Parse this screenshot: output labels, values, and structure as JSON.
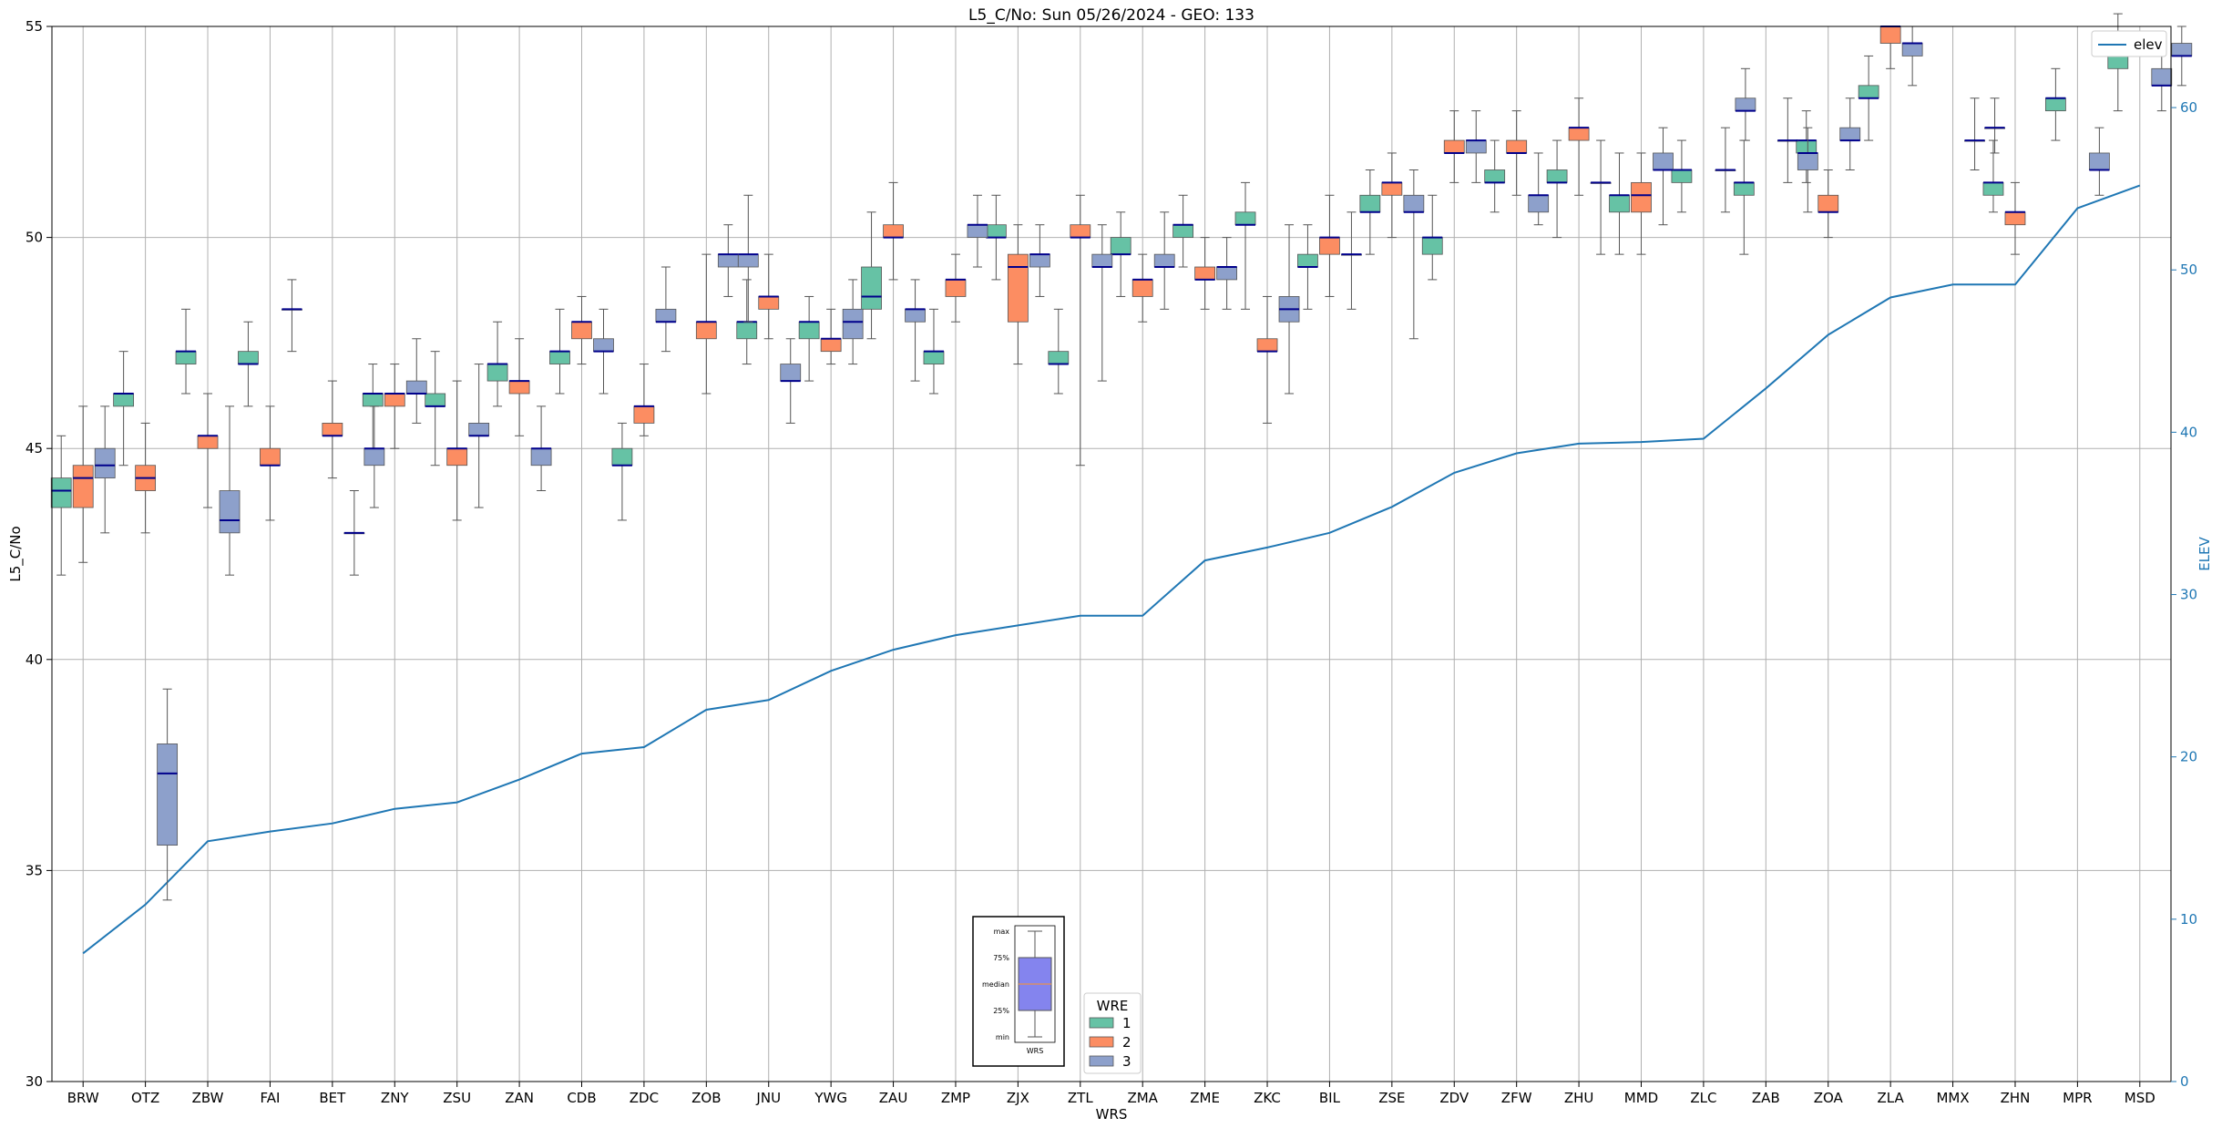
{
  "chart_data": {
    "type": "box",
    "title": "L5_C/No: Sun 05/26/2024 - GEO: 133",
    "xlabel": "WRS",
    "ylabel": "L5_C/No",
    "y2label": "ELEV",
    "ylim": [
      30,
      55
    ],
    "y2lim": [
      0,
      65
    ],
    "yticks": [
      30,
      35,
      40,
      45,
      50,
      55
    ],
    "y2ticks": [
      0,
      10,
      20,
      30,
      40,
      50,
      60
    ],
    "grid": true,
    "categories": [
      "BRW",
      "OTZ",
      "ZBW",
      "FAI",
      "BET",
      "ZNY",
      "ZSU",
      "ZAN",
      "CDB",
      "ZDC",
      "ZOB",
      "JNU",
      "YWG",
      "ZAU",
      "ZMP",
      "ZJX",
      "ZTL",
      "ZMA",
      "ZME",
      "ZKC",
      "BIL",
      "ZSE",
      "ZDV",
      "ZFW",
      "ZHU",
      "MMD",
      "ZLC",
      "ZAB",
      "ZOA",
      "ZLA",
      "MMX",
      "ZHN",
      "MPR",
      "MSD"
    ],
    "wre_colors": {
      "1": "#66c2a5",
      "2": "#fc8d62",
      "3": "#8da0cb"
    },
    "median_color": "#00008b",
    "elev": {
      "name": "elev",
      "color": "#1f77b4",
      "values": [
        7.9,
        10.9,
        14.8,
        15.4,
        15.9,
        16.8,
        17.2,
        18.6,
        20.2,
        20.6,
        22.9,
        23.5,
        25.3,
        26.6,
        27.5,
        28.1,
        28.7,
        28.7,
        32.1,
        32.9,
        33.8,
        35.4,
        37.5,
        38.7,
        39.3,
        39.4,
        39.6,
        42.7,
        46.0,
        48.3,
        49.1,
        49.1,
        53.8,
        55.2
      ]
    },
    "series": [
      {
        "name": "1",
        "boxes": [
          {
            "cat": "BRW",
            "min": 42,
            "q1": 43.6,
            "med": 44,
            "q3": 44.3,
            "max": 45.3
          },
          {
            "cat": "OTZ",
            "min": 44.6,
            "q1": 46,
            "med": 46.3,
            "q3": 46.3,
            "max": 47.3
          },
          {
            "cat": "ZBW",
            "min": 46.3,
            "q1": 47,
            "med": 47.3,
            "q3": 47.3,
            "max": 48.3
          },
          {
            "cat": "FAI",
            "min": 46,
            "q1": 47,
            "med": 47,
            "q3": 47.3,
            "max": 48
          },
          {
            "cat": "ZNY",
            "min": 45,
            "q1": 46,
            "med": 46.3,
            "q3": 46.3,
            "max": 47
          },
          {
            "cat": "ZSU",
            "min": 44.6,
            "q1": 46,
            "med": 46,
            "q3": 46.3,
            "max": 47.3
          },
          {
            "cat": "ZAN",
            "min": 46,
            "q1": 46.6,
            "med": 47,
            "q3": 47,
            "max": 48
          },
          {
            "cat": "CDB",
            "min": 46.3,
            "q1": 47,
            "med": 47.3,
            "q3": 47.3,
            "max": 48.3
          },
          {
            "cat": "ZDC",
            "min": 43.3,
            "q1": 44.6,
            "med": 44.6,
            "q3": 45,
            "max": 45.6
          },
          {
            "cat": "JNU",
            "min": 47,
            "q1": 47.6,
            "med": 48,
            "q3": 48,
            "max": 49
          },
          {
            "cat": "YWG",
            "min": 46.6,
            "q1": 47.6,
            "med": 48,
            "q3": 48,
            "max": 48.6
          },
          {
            "cat": "ZAU",
            "min": 47.6,
            "q1": 48.3,
            "med": 48.6,
            "q3": 49.3,
            "max": 50.6
          },
          {
            "cat": "ZMP",
            "min": 46.3,
            "q1": 47,
            "med": 47.3,
            "q3": 47.3,
            "max": 48.3
          },
          {
            "cat": "ZJX",
            "min": 49,
            "q1": 50,
            "med": 50,
            "q3": 50.3,
            "max": 51
          },
          {
            "cat": "ZTL",
            "min": 46.3,
            "q1": 47,
            "med": 47,
            "q3": 47.3,
            "max": 48.3
          },
          {
            "cat": "ZMA",
            "min": 48.6,
            "q1": 49.6,
            "med": 49.6,
            "q3": 50,
            "max": 50.6
          },
          {
            "cat": "ZME",
            "min": 49.3,
            "q1": 50,
            "med": 50.3,
            "q3": 50.3,
            "max": 51
          },
          {
            "cat": "ZKC",
            "min": 48.3,
            "q1": 50.3,
            "med": 50.3,
            "q3": 50.6,
            "max": 51.3
          },
          {
            "cat": "BIL",
            "min": 48.3,
            "q1": 49.3,
            "med": 49.3,
            "q3": 49.6,
            "max": 50.3
          },
          {
            "cat": "ZSE",
            "min": 49.6,
            "q1": 50.6,
            "med": 50.6,
            "q3": 51,
            "max": 51.6
          },
          {
            "cat": "ZDV",
            "min": 49,
            "q1": 49.6,
            "med": 50,
            "q3": 50,
            "max": 51
          },
          {
            "cat": "ZFW",
            "min": 50.6,
            "q1": 51.3,
            "med": 51.3,
            "q3": 51.6,
            "max": 52.3
          },
          {
            "cat": "ZHU",
            "min": 50,
            "q1": 51.3,
            "med": 51.3,
            "q3": 51.6,
            "max": 52.3
          },
          {
            "cat": "MMD",
            "min": 49.6,
            "q1": 50.6,
            "med": 51,
            "q3": 51,
            "max": 52
          },
          {
            "cat": "ZLC",
            "min": 50.6,
            "q1": 51.3,
            "med": 51.6,
            "q3": 51.6,
            "max": 52.3
          },
          {
            "cat": "ZAB",
            "min": 49.6,
            "q1": 51,
            "med": 51.3,
            "q3": 51.3,
            "max": 52.3
          },
          {
            "cat": "ZOA",
            "min": 51.3,
            "q1": 52,
            "med": 52.3,
            "q3": 52.3,
            "max": 53
          },
          {
            "cat": "ZLA",
            "min": 52.3,
            "q1": 53.3,
            "med": 53.3,
            "q3": 53.6,
            "max": 54.3
          },
          {
            "cat": "ZHN",
            "min": 50.6,
            "q1": 51,
            "med": 51.3,
            "q3": 51.3,
            "max": 52.3
          },
          {
            "cat": "MPR",
            "min": 52.3,
            "q1": 53,
            "med": 53.3,
            "q3": 53.3,
            "max": 54
          },
          {
            "cat": "MSD",
            "min": 53,
            "q1": 54,
            "med": 54.3,
            "q3": 54.3,
            "max": 55.3
          }
        ]
      },
      {
        "name": "2",
        "boxes": [
          {
            "cat": "BRW",
            "min": 42.3,
            "q1": 43.6,
            "med": 44.3,
            "q3": 44.6,
            "max": 46
          },
          {
            "cat": "OTZ",
            "min": 43,
            "q1": 44,
            "med": 44.3,
            "q3": 44.6,
            "max": 45.6
          },
          {
            "cat": "ZBW",
            "min": 43.6,
            "q1": 45,
            "med": 45.3,
            "q3": 45.3,
            "max": 46.3
          },
          {
            "cat": "FAI",
            "min": 43.3,
            "q1": 44.6,
            "med": 44.6,
            "q3": 45,
            "max": 46
          },
          {
            "cat": "BET",
            "min": 44.3,
            "q1": 45.3,
            "med": 45.3,
            "q3": 45.6,
            "max": 46.6
          },
          {
            "cat": "ZNY",
            "min": 45,
            "q1": 46,
            "med": 46.3,
            "q3": 46.3,
            "max": 47
          },
          {
            "cat": "ZSU",
            "min": 43.3,
            "q1": 44.6,
            "med": 45,
            "q3": 45,
            "max": 46.6
          },
          {
            "cat": "ZAN",
            "min": 45.3,
            "q1": 46.3,
            "med": 46.6,
            "q3": 46.6,
            "max": 47.6
          },
          {
            "cat": "CDB",
            "min": 47,
            "q1": 47.6,
            "med": 48,
            "q3": 48,
            "max": 48.6
          },
          {
            "cat": "ZDC",
            "min": 45.3,
            "q1": 45.6,
            "med": 46,
            "q3": 46,
            "max": 47
          },
          {
            "cat": "ZOB",
            "min": 46.3,
            "q1": 47.6,
            "med": 48,
            "q3": 48,
            "max": 49.6
          },
          {
            "cat": "JNU",
            "min": 47.6,
            "q1": 48.3,
            "med": 48.6,
            "q3": 48.6,
            "max": 49.6
          },
          {
            "cat": "YWG",
            "min": 47,
            "q1": 47.3,
            "med": 47.6,
            "q3": 47.6,
            "max": 48.3
          },
          {
            "cat": "ZAU",
            "min": 49,
            "q1": 50,
            "med": 50,
            "q3": 50.3,
            "max": 51.3
          },
          {
            "cat": "ZMP",
            "min": 48,
            "q1": 48.6,
            "med": 49,
            "q3": 49,
            "max": 49.6
          },
          {
            "cat": "ZJX",
            "min": 47,
            "q1": 48,
            "med": 49.3,
            "q3": 49.6,
            "max": 50.3
          },
          {
            "cat": "ZTL",
            "min": 44.6,
            "q1": 50,
            "med": 50,
            "q3": 50.3,
            "max": 51
          },
          {
            "cat": "ZMA",
            "min": 48,
            "q1": 48.6,
            "med": 49,
            "q3": 49,
            "max": 49.6
          },
          {
            "cat": "ZME",
            "min": 48.3,
            "q1": 49,
            "med": 49,
            "q3": 49.3,
            "max": 50
          },
          {
            "cat": "ZKC",
            "min": 45.6,
            "q1": 47.3,
            "med": 47.3,
            "q3": 47.6,
            "max": 48.6
          },
          {
            "cat": "BIL",
            "min": 48.6,
            "q1": 49.6,
            "med": 50,
            "q3": 50,
            "max": 51
          },
          {
            "cat": "ZSE",
            "min": 50,
            "q1": 51,
            "med": 51.3,
            "q3": 51.3,
            "max": 52
          },
          {
            "cat": "ZDV",
            "min": 51.3,
            "q1": 52,
            "med": 52,
            "q3": 52.3,
            "max": 53
          },
          {
            "cat": "ZFW",
            "min": 51,
            "q1": 52,
            "med": 52,
            "q3": 52.3,
            "max": 53
          },
          {
            "cat": "ZHU",
            "min": 51,
            "q1": 52.3,
            "med": 52.6,
            "q3": 52.6,
            "max": 53.3
          },
          {
            "cat": "MMD",
            "min": 49.6,
            "q1": 50.6,
            "med": 51,
            "q3": 51.3,
            "max": 52
          },
          {
            "cat": "ZOA",
            "min": 50,
            "q1": 50.6,
            "med": 50.6,
            "q3": 51,
            "max": 51.6
          },
          {
            "cat": "ZLA",
            "min": 54,
            "q1": 54.6,
            "med": 55,
            "q3": 55,
            "max": 55
          },
          {
            "cat": "ZHN",
            "min": 49.6,
            "q1": 50.3,
            "med": 50.6,
            "q3": 50.6,
            "max": 51.3
          }
        ]
      },
      {
        "name": "3",
        "boxes": [
          {
            "cat": "BRW",
            "min": 43,
            "q1": 44.3,
            "med": 44.6,
            "q3": 45,
            "max": 46
          },
          {
            "cat": "OTZ",
            "min": 34.3,
            "q1": 35.6,
            "med": 37.3,
            "q3": 38,
            "max": 39.3
          },
          {
            "cat": "ZBW",
            "min": 42,
            "q1": 43,
            "med": 43.3,
            "q3": 44,
            "max": 46
          },
          {
            "cat": "FAI",
            "min": 47.3,
            "q1": 48.3,
            "med": 48.3,
            "q3": 48.3,
            "max": 49
          },
          {
            "cat": "BET",
            "min": 42,
            "q1": 43,
            "med": 43,
            "q3": 43,
            "max": 44
          },
          {
            "cat": "BET",
            "min": 43.6,
            "q1": 44.6,
            "med": 45,
            "q3": 45,
            "max": 46
          },
          {
            "cat": "ZNY",
            "min": 45.6,
            "q1": 46.3,
            "med": 46.3,
            "q3": 46.6,
            "max": 47.6
          },
          {
            "cat": "ZSU",
            "min": 43.6,
            "q1": 45.3,
            "med": 45.3,
            "q3": 45.6,
            "max": 47
          },
          {
            "cat": "ZAN",
            "min": 44,
            "q1": 44.6,
            "med": 45,
            "q3": 45,
            "max": 46
          },
          {
            "cat": "CDB",
            "min": 46.3,
            "q1": 47.3,
            "med": 47.3,
            "q3": 47.6,
            "max": 48.3
          },
          {
            "cat": "ZDC",
            "min": 47.3,
            "q1": 48,
            "med": 48,
            "q3": 48.3,
            "max": 49.3
          },
          {
            "cat": "ZOB",
            "min": 48.6,
            "q1": 49.3,
            "med": 49.6,
            "q3": 49.6,
            "max": 50.3
          },
          {
            "cat": "ZOB",
            "min": 48,
            "q1": 49.3,
            "med": 49.6,
            "q3": 49.6,
            "max": 51
          },
          {
            "cat": "JNU",
            "min": 45.6,
            "q1": 46.6,
            "med": 46.6,
            "q3": 47,
            "max": 47.6
          },
          {
            "cat": "YWG",
            "min": 47,
            "q1": 47.6,
            "med": 48,
            "q3": 48.3,
            "max": 49
          },
          {
            "cat": "ZAU",
            "min": 46.6,
            "q1": 48,
            "med": 48.3,
            "q3": 48.3,
            "max": 49
          },
          {
            "cat": "ZMP",
            "min": 49.3,
            "q1": 50,
            "med": 50.3,
            "q3": 50.3,
            "max": 51
          },
          {
            "cat": "ZJX",
            "min": 48.6,
            "q1": 49.3,
            "med": 49.6,
            "q3": 49.6,
            "max": 50.3
          },
          {
            "cat": "ZTL",
            "min": 46.6,
            "q1": 49.3,
            "med": 49.3,
            "q3": 49.6,
            "max": 50.3
          },
          {
            "cat": "ZMA",
            "min": 48.3,
            "q1": 49.3,
            "med": 49.3,
            "q3": 49.6,
            "max": 50.6
          },
          {
            "cat": "ZME",
            "min": 48.3,
            "q1": 49,
            "med": 49.3,
            "q3": 49.3,
            "max": 50
          },
          {
            "cat": "ZKC",
            "min": 46.3,
            "q1": 48,
            "med": 48.3,
            "q3": 48.6,
            "max": 50.3
          },
          {
            "cat": "BIL",
            "min": 48.3,
            "q1": 49.6,
            "med": 49.6,
            "q3": 49.6,
            "max": 50.6
          },
          {
            "cat": "ZSE",
            "min": 47.6,
            "q1": 50.6,
            "med": 50.6,
            "q3": 51,
            "max": 51.6
          },
          {
            "cat": "ZDV",
            "min": 51.3,
            "q1": 52,
            "med": 52.3,
            "q3": 52.3,
            "max": 53
          },
          {
            "cat": "ZFW",
            "min": 50.3,
            "q1": 50.6,
            "med": 51,
            "q3": 51,
            "max": 52
          },
          {
            "cat": "ZHU",
            "min": 49.6,
            "q1": 51.3,
            "med": 51.3,
            "q3": 51.3,
            "max": 52.3
          },
          {
            "cat": "MMD",
            "min": 50.3,
            "q1": 51.6,
            "med": 51.6,
            "q3": 52,
            "max": 52.6
          },
          {
            "cat": "ZLC",
            "min": 50.6,
            "q1": 51.6,
            "med": 51.6,
            "q3": 51.6,
            "max": 52.6
          },
          {
            "cat": "ZLC",
            "min": 52.3,
            "q1": 53,
            "med": 53,
            "q3": 53.3,
            "max": 54
          },
          {
            "cat": "ZAB",
            "min": 51.3,
            "q1": 52.3,
            "med": 52.3,
            "q3": 52.3,
            "max": 53.3
          },
          {
            "cat": "ZAB",
            "min": 50.6,
            "q1": 51.6,
            "med": 52,
            "q3": 52,
            "max": 52.6
          },
          {
            "cat": "ZOA",
            "min": 51.6,
            "q1": 52.3,
            "med": 52.3,
            "q3": 52.6,
            "max": 53.3
          },
          {
            "cat": "ZLA",
            "min": 53.6,
            "q1": 54.3,
            "med": 54.6,
            "q3": 54.6,
            "max": 55
          },
          {
            "cat": "MMX",
            "min": 51.6,
            "q1": 52.3,
            "med": 52.3,
            "q3": 52.3,
            "max": 53.3
          },
          {
            "cat": "MMX",
            "min": 52,
            "q1": 52.6,
            "med": 52.6,
            "q3": 52.6,
            "max": 53.3
          },
          {
            "cat": "MPR",
            "min": 51,
            "q1": 51.6,
            "med": 51.6,
            "q3": 52,
            "max": 52.6
          },
          {
            "cat": "MSD",
            "min": 53,
            "q1": 53.6,
            "med": 53.6,
            "q3": 54,
            "max": 54.6
          },
          {
            "cat": "MSD",
            "min": 53.6,
            "q1": 54.3,
            "med": 54.3,
            "q3": 54.6,
            "max": 55
          }
        ]
      }
    ],
    "legend": {
      "title": "WRE",
      "entries": [
        "1",
        "2",
        "3"
      ],
      "line_entry": "elev"
    },
    "key_box": {
      "labels": [
        "max",
        "75%",
        "median",
        "25%",
        "min"
      ],
      "xlabel": "WRS"
    }
  }
}
